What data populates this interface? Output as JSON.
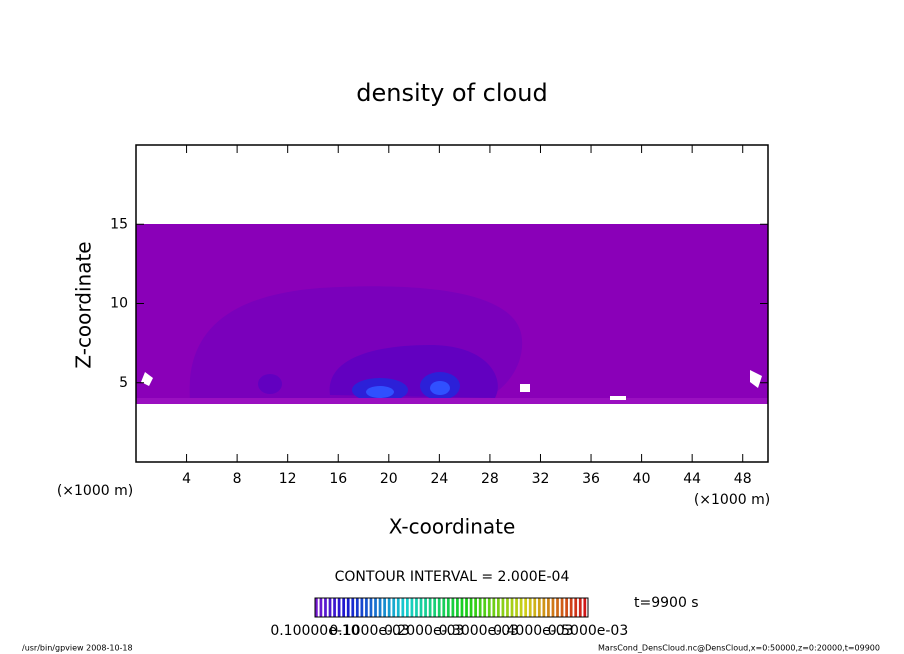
{
  "chart_data": {
    "type": "contour",
    "title": "density of cloud",
    "xlabel": "X-coordinate",
    "ylabel": "Z-coordinate",
    "xunit": "(×1000 m)",
    "yunit": "(×1000 m)",
    "xlim": [
      0,
      50
    ],
    "xticks": [
      4,
      8,
      12,
      16,
      20,
      24,
      28,
      32,
      36,
      40,
      44,
      48
    ],
    "ylim": [
      0,
      20
    ],
    "yticks": [
      5,
      10,
      15
    ],
    "contour_interval": "CONTOUR INTERVAL = 2.000E-04",
    "time": "t=9900 s",
    "colorbar_labels": [
      "0.10000e-10",
      "0.1000e-03",
      "0.2000e-03",
      "0.3000e-03",
      "0.4000e-03",
      "0.5000e-03"
    ],
    "footer_left": "/usr/bin/gpview   2008-10-18",
    "footer_right": "MarsCond_DensCloud.nc@DensCloud,x=0:50000,z=0:20000,t=09900"
  }
}
